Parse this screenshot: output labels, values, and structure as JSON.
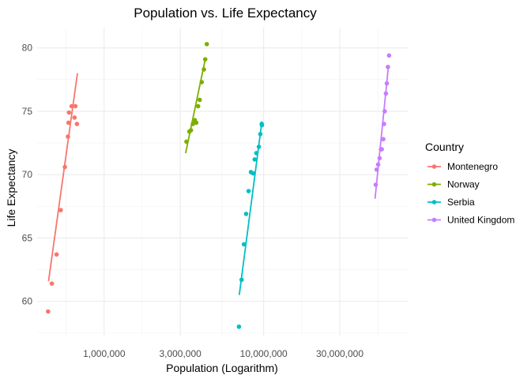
{
  "chart_data": {
    "type": "scatter",
    "title": "Population vs. Life Expectancy",
    "xlabel": "Population (Logarithm)",
    "ylabel": "Life Expectancy",
    "x_scale": "log10",
    "xlim": [
      380000,
      80000000
    ],
    "ylim": [
      57.3,
      81.6
    ],
    "x_ticks": [
      1000000,
      3000000,
      10000000,
      30000000
    ],
    "x_tick_labels": [
      "1,000,000",
      "3,000,000",
      "10,000,000",
      "30,000,000"
    ],
    "y_ticks": [
      60,
      65,
      70,
      75,
      80
    ],
    "y_tick_labels": [
      "60",
      "65",
      "70",
      "75",
      "80"
    ],
    "grid": true,
    "legend": {
      "title": "Country",
      "position": "right"
    },
    "series": [
      {
        "name": "Montenegro",
        "color": "#F8766D",
        "points": [
          [
            445000,
            59.2
          ],
          [
            470000,
            61.4
          ],
          [
            503000,
            63.7
          ],
          [
            534000,
            67.2
          ],
          [
            567000,
            70.6
          ],
          [
            593000,
            73.0
          ],
          [
            598000,
            74.1
          ],
          [
            602000,
            74.9
          ],
          [
            625000,
            75.4
          ],
          [
            652000,
            74.5
          ],
          [
            660000,
            75.4
          ],
          [
            675000,
            74.0
          ]
        ],
        "fit": [
          [
            448000,
            61.6
          ],
          [
            680000,
            78.0
          ]
        ]
      },
      {
        "name": "Norway",
        "color": "#7CAE00",
        "points": [
          [
            3280000,
            72.6
          ],
          [
            3420000,
            73.4
          ],
          [
            3500000,
            73.5
          ],
          [
            3600000,
            74.0
          ],
          [
            3700000,
            74.3
          ],
          [
            3780000,
            74.1
          ],
          [
            3880000,
            75.4
          ],
          [
            3970000,
            75.9
          ],
          [
            4090000,
            77.3
          ],
          [
            4220000,
            78.3
          ],
          [
            4300000,
            79.1
          ],
          [
            4400000,
            80.3
          ]
        ],
        "fit": [
          [
            3240000,
            71.7
          ],
          [
            4320000,
            79.2
          ]
        ]
      },
      {
        "name": "Serbia",
        "color": "#00BFC4",
        "points": [
          [
            7000000,
            58.0
          ],
          [
            7270000,
            61.7
          ],
          [
            7520000,
            64.5
          ],
          [
            7760000,
            66.9
          ],
          [
            8040000,
            68.7
          ],
          [
            8320000,
            70.2
          ],
          [
            8590000,
            70.1
          ],
          [
            8780000,
            71.2
          ],
          [
            9000000,
            71.7
          ],
          [
            9330000,
            72.2
          ],
          [
            9530000,
            73.2
          ],
          [
            9750000,
            73.9
          ],
          [
            9720000,
            74.0
          ]
        ],
        "fit": [
          [
            7030000,
            60.5
          ],
          [
            9750000,
            74.2
          ]
        ]
      },
      {
        "name": "United Kingdom",
        "color": "#C77CFF",
        "points": [
          [
            50400000,
            69.2
          ],
          [
            51100000,
            70.4
          ],
          [
            52200000,
            70.8
          ],
          [
            53300000,
            71.3
          ],
          [
            54400000,
            72.0
          ],
          [
            55000000,
            72.0
          ],
          [
            56200000,
            72.8
          ],
          [
            56800000,
            74.0
          ],
          [
            57400000,
            75.0
          ],
          [
            58400000,
            76.4
          ],
          [
            59200000,
            77.2
          ],
          [
            60100000,
            78.5
          ],
          [
            61100000,
            79.4
          ]
        ],
        "fit": [
          [
            49900000,
            68.1
          ],
          [
            60600000,
            78.6
          ]
        ]
      }
    ]
  }
}
